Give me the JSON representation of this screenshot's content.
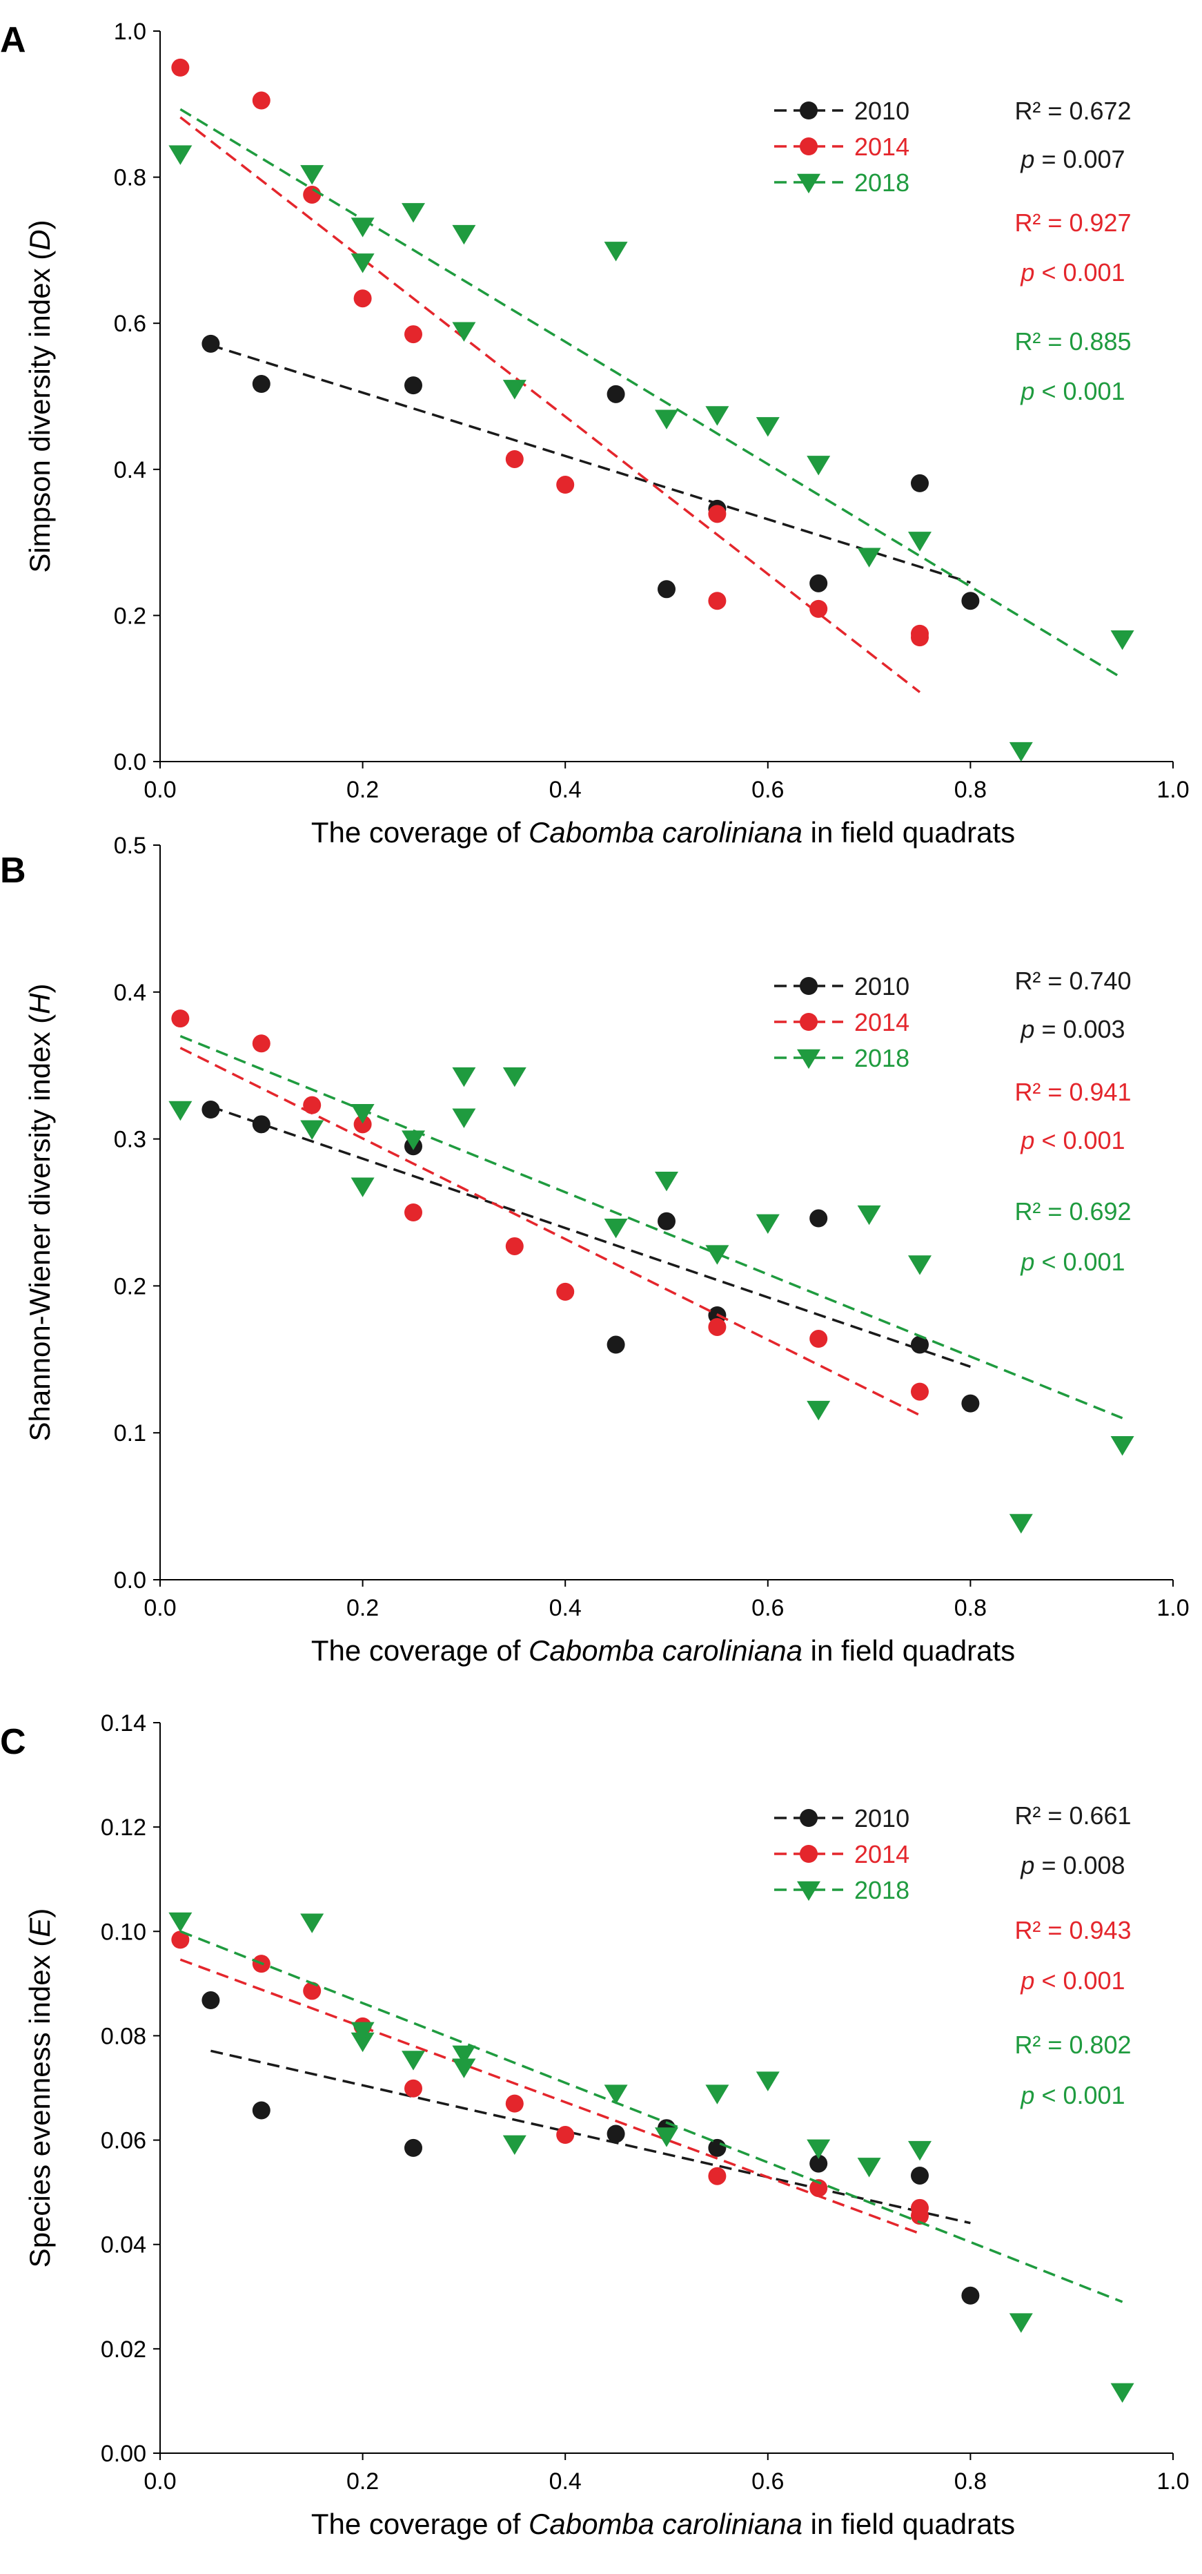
{
  "colors": {
    "2010": "#1a1a1a",
    "2014": "#e4262c",
    "2018": "#1f9b3f",
    "axis": "#000000"
  },
  "chart_data": [
    {
      "panel": "A",
      "type": "scatter",
      "xlabel_pre": "The coverage of ",
      "xlabel_italic": "Cabomba caroliniana",
      "xlabel_post": " in field quadrats",
      "ylabel_pre": "Simpson diversity index (",
      "ylabel_italic": "D",
      "ylabel_post": ")",
      "xlim": [
        0,
        1.0
      ],
      "ylim": [
        0,
        1.0
      ],
      "xticks": [
        "0.0",
        "0.2",
        "0.4",
        "0.6",
        "0.8",
        "1.0"
      ],
      "yticks": [
        "0.0",
        "0.2",
        "0.4",
        "0.6",
        "0.8",
        "1.0"
      ],
      "series": [
        {
          "name": "2010",
          "marker": "circle",
          "x": [
            0.05,
            0.1,
            0.25,
            0.45,
            0.5,
            0.55,
            0.65,
            0.75,
            0.8
          ],
          "y": [
            0.572,
            0.517,
            0.515,
            0.503,
            0.236,
            0.346,
            0.244,
            0.381,
            0.22
          ],
          "fit": {
            "x": [
              0.05,
              0.8
            ],
            "y": [
              0.57,
              0.245
            ]
          },
          "stat_r2": "R² = 0.672",
          "stat_p_label": "p",
          "stat_p_rest": " = 0.007"
        },
        {
          "name": "2014",
          "marker": "circle",
          "x": [
            0.02,
            0.1,
            0.15,
            0.2,
            0.25,
            0.35,
            0.4,
            0.55,
            0.55,
            0.65,
            0.75,
            0.75
          ],
          "y": [
            0.95,
            0.905,
            0.776,
            0.634,
            0.585,
            0.414,
            0.379,
            0.339,
            0.22,
            0.209,
            0.175,
            0.17
          ],
          "fit": {
            "x": [
              0.02,
              0.75
            ],
            "y": [
              0.882,
              0.095
            ]
          },
          "stat_r2": "R² = 0.927",
          "stat_p_label": "p",
          "stat_p_rest": " < 0.001"
        },
        {
          "name": "2018",
          "marker": "triangle-down",
          "x": [
            0.02,
            0.15,
            0.2,
            0.2,
            0.25,
            0.3,
            0.3,
            0.35,
            0.45,
            0.5,
            0.55,
            0.6,
            0.65,
            0.7,
            0.75,
            0.85,
            0.95
          ],
          "y": [
            0.832,
            0.805,
            0.733,
            0.684,
            0.753,
            0.723,
            0.59,
            0.511,
            0.7,
            0.47,
            0.475,
            0.46,
            0.407,
            0.281,
            0.303,
            0.015,
            0.168
          ],
          "fit": {
            "x": [
              0.02,
              0.95
            ],
            "y": [
              0.893,
              0.114
            ]
          },
          "stat_r2": "R² = 0.885",
          "stat_p_label": "p",
          "stat_p_rest": " < 0.001"
        }
      ]
    },
    {
      "panel": "B",
      "type": "scatter",
      "xlabel_pre": "The coverage of ",
      "xlabel_italic": "Cabomba caroliniana",
      "xlabel_post": " in field quadrats",
      "ylabel_pre": "Shannon-Wiener diversity index (",
      "ylabel_italic": "H",
      "ylabel_post": ")",
      "xlim": [
        0,
        1.0
      ],
      "ylim": [
        0,
        0.5
      ],
      "xticks": [
        "0.0",
        "0.2",
        "0.4",
        "0.6",
        "0.8",
        "1.0"
      ],
      "yticks": [
        "0.0",
        "0.1",
        "0.2",
        "0.3",
        "0.4",
        "0.5"
      ],
      "series": [
        {
          "name": "2010",
          "marker": "circle",
          "x": [
            0.05,
            0.1,
            0.25,
            0.45,
            0.5,
            0.55,
            0.65,
            0.75,
            0.8
          ],
          "y": [
            0.32,
            0.31,
            0.295,
            0.16,
            0.244,
            0.18,
            0.246,
            0.16,
            0.12
          ],
          "fit": {
            "x": [
              0.05,
              0.8
            ],
            "y": [
              0.322,
              0.145
            ]
          },
          "stat_r2": "R² = 0.740",
          "stat_p_label": "p",
          "stat_p_rest": " = 0.003"
        },
        {
          "name": "2014",
          "marker": "circle",
          "x": [
            0.02,
            0.1,
            0.15,
            0.2,
            0.25,
            0.35,
            0.4,
            0.55,
            0.65,
            0.75
          ],
          "y": [
            0.382,
            0.365,
            0.323,
            0.31,
            0.25,
            0.227,
            0.196,
            0.172,
            0.164,
            0.128
          ],
          "fit": {
            "x": [
              0.02,
              0.75
            ],
            "y": [
              0.362,
              0.112
            ]
          },
          "stat_r2": "R² = 0.941",
          "stat_p_label": "p",
          "stat_p_rest": " < 0.001"
        },
        {
          "name": "2018",
          "marker": "triangle-down",
          "x": [
            0.02,
            0.15,
            0.2,
            0.2,
            0.25,
            0.3,
            0.3,
            0.35,
            0.45,
            0.5,
            0.55,
            0.6,
            0.65,
            0.7,
            0.75,
            0.85,
            0.95
          ],
          "y": [
            0.32,
            0.307,
            0.318,
            0.268,
            0.3,
            0.343,
            0.315,
            0.343,
            0.24,
            0.272,
            0.222,
            0.243,
            0.116,
            0.249,
            0.215,
            0.039,
            0.092
          ],
          "fit": {
            "x": [
              0.02,
              0.95
            ],
            "y": [
              0.37,
              0.11
            ]
          },
          "stat_r2": "R² = 0.692",
          "stat_p_label": "p",
          "stat_p_rest": " < 0.001"
        }
      ]
    },
    {
      "panel": "C",
      "type": "scatter",
      "xlabel_pre": "The coverage of ",
      "xlabel_italic": "Cabomba caroliniana",
      "xlabel_post": " in field quadrats",
      "ylabel_pre": "Species evenness index (",
      "ylabel_italic": "E",
      "ylabel_post": ")",
      "xlim": [
        0,
        1.0
      ],
      "ylim": [
        0,
        0.14
      ],
      "xticks": [
        "0.0",
        "0.2",
        "0.4",
        "0.6",
        "0.8",
        "1.0"
      ],
      "yticks": [
        "0.00",
        "0.02",
        "0.04",
        "0.06",
        "0.08",
        "0.10",
        "0.12",
        "0.14"
      ],
      "series": [
        {
          "name": "2010",
          "marker": "circle",
          "x": [
            0.05,
            0.1,
            0.25,
            0.45,
            0.5,
            0.55,
            0.65,
            0.75,
            0.8
          ],
          "y": [
            0.0868,
            0.0657,
            0.0585,
            0.0612,
            0.0623,
            0.0585,
            0.0555,
            0.0532,
            0.0302
          ],
          "fit": {
            "x": [
              0.05,
              0.8
            ],
            "y": [
              0.0771,
              0.0441
            ]
          },
          "stat_r2": "R² = 0.661",
          "stat_p_label": "p",
          "stat_p_rest": " = 0.008"
        },
        {
          "name": "2014",
          "marker": "circle",
          "x": [
            0.02,
            0.1,
            0.15,
            0.2,
            0.25,
            0.35,
            0.4,
            0.55,
            0.65,
            0.75,
            0.75
          ],
          "y": [
            0.0984,
            0.0938,
            0.0886,
            0.0818,
            0.0699,
            0.067,
            0.061,
            0.0531,
            0.0508,
            0.047,
            0.0455
          ],
          "fit": {
            "x": [
              0.02,
              0.75
            ],
            "y": [
              0.0946,
              0.0421
            ]
          },
          "stat_r2": "R² = 0.943",
          "stat_p_label": "p",
          "stat_p_rest": " < 0.001"
        },
        {
          "name": "2018",
          "marker": "triangle-down",
          "x": [
            0.02,
            0.15,
            0.2,
            0.2,
            0.25,
            0.3,
            0.3,
            0.35,
            0.45,
            0.5,
            0.55,
            0.6,
            0.65,
            0.7,
            0.75,
            0.85,
            0.95
          ],
          "y": [
            0.102,
            0.1018,
            0.079,
            0.081,
            0.0755,
            0.0765,
            0.074,
            0.0593,
            0.069,
            0.0608,
            0.069,
            0.0715,
            0.0585,
            0.055,
            0.0582,
            0.0252,
            0.0118
          ],
          "fit": {
            "x": [
              0.02,
              0.95
            ],
            "y": [
              0.1,
              0.029
            ]
          },
          "stat_r2": "R² = 0.802",
          "stat_p_label": "p",
          "stat_p_rest": " < 0.001"
        }
      ]
    }
  ]
}
